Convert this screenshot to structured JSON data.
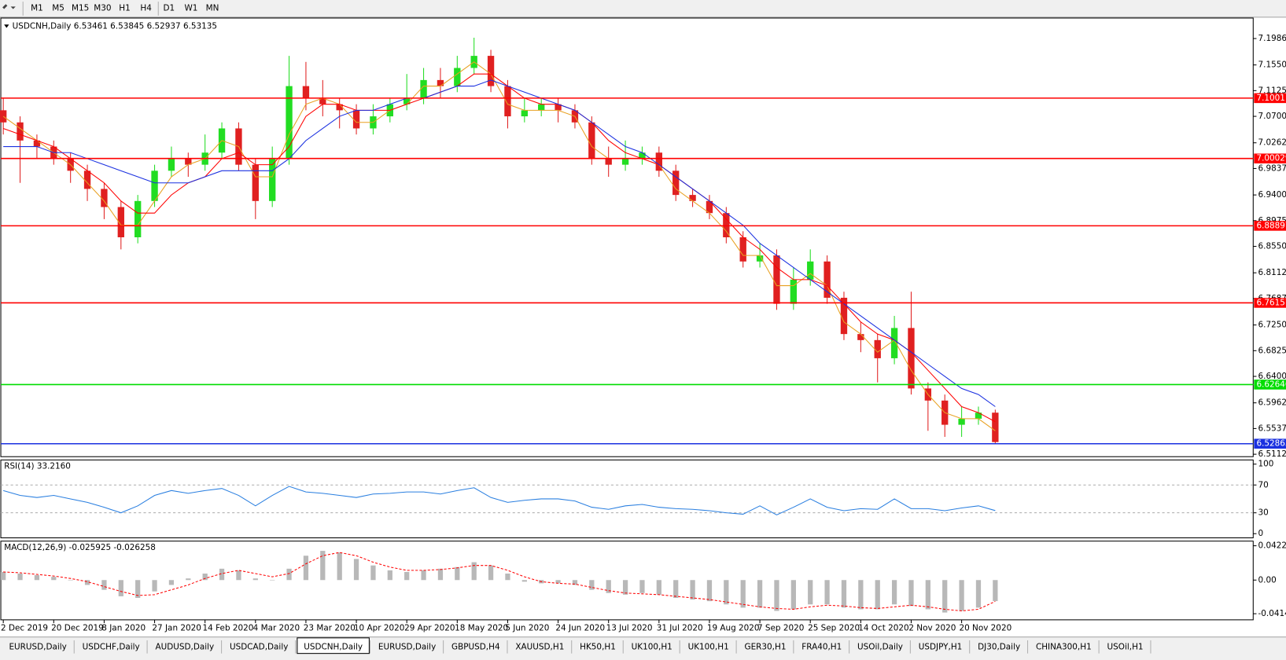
{
  "toolbar": {
    "timeframes": [
      "M1",
      "M5",
      "M15",
      "M30",
      "H1",
      "H4",
      "D1",
      "W1",
      "MN"
    ]
  },
  "tabs": {
    "items": [
      "EURUSD,Daily",
      "USDCHF,Daily",
      "AUDUSD,Daily",
      "USDCAD,Daily",
      "USDCNH,Daily",
      "EURUSD,Daily",
      "GBPUSD,H4",
      "XAUUSD,H1",
      "HK50,H1",
      "UK100,H1",
      "UK100,H1",
      "GER30,H1",
      "FRA40,H1",
      "USOil,Daily",
      "USDJPY,H1",
      "DJ30,Daily",
      "CHINA300,H1",
      "USOil,H1"
    ],
    "active": 4
  },
  "chart_data": [
    {
      "type": "candlestick",
      "title": "USDCNH,Daily  6.53461 6.53845 6.52937 6.53135",
      "categories": [
        "2 Dec 2019",
        null,
        null,
        "20 Dec 2019",
        null,
        null,
        "8 Jan 2020",
        null,
        null,
        "27 Jan 2020",
        null,
        null,
        "14 Feb 2020",
        null,
        null,
        "4 Mar 2020",
        null,
        null,
        "23 Mar 2020",
        null,
        null,
        "10 Apr 2020",
        null,
        null,
        "29 Apr 2020",
        null,
        null,
        "18 May 2020",
        null,
        null,
        "5 Jun 2020",
        null,
        null,
        "24 Jun 2020",
        null,
        null,
        "13 Jul 2020",
        null,
        null,
        "31 Jul 2020",
        null,
        null,
        "19 Aug 2020",
        null,
        null,
        "7 Sep 2020",
        null,
        null,
        "25 Sep 2020",
        null,
        null,
        "14 Oct 2020",
        null,
        null,
        "2 Nov 2020",
        null,
        null,
        "20 Nov 2020",
        null,
        null
      ],
      "open": [
        7.08,
        7.06,
        7.03,
        7.02,
        7.0,
        6.98,
        6.95,
        6.92,
        6.87,
        6.93,
        6.98,
        7.0,
        6.99,
        7.01,
        7.05,
        6.99,
        6.93,
        7.0,
        7.12,
        7.1,
        7.09,
        7.08,
        7.05,
        7.07,
        7.09,
        7.1,
        7.13,
        7.12,
        7.15,
        7.17,
        7.12,
        7.07,
        7.08,
        7.09,
        7.08,
        7.06,
        7.0,
        6.99,
        7.0,
        7.01,
        6.98,
        6.94,
        6.93,
        6.91,
        6.87,
        6.83,
        6.84,
        6.76,
        6.8,
        6.83,
        6.77,
        6.71,
        6.7,
        6.67,
        6.72,
        6.62,
        6.6,
        6.56,
        6.57,
        6.58
      ],
      "high": [
        7.1,
        7.07,
        7.04,
        7.03,
        7.01,
        6.99,
        6.96,
        6.93,
        6.94,
        6.99,
        7.02,
        7.01,
        7.04,
        7.06,
        7.06,
        7.0,
        7.02,
        7.17,
        7.16,
        7.13,
        7.1,
        7.09,
        7.09,
        7.1,
        7.14,
        7.15,
        7.15,
        7.17,
        7.2,
        7.18,
        7.13,
        7.1,
        7.1,
        7.1,
        7.09,
        7.07,
        7.02,
        7.03,
        7.02,
        7.02,
        6.99,
        6.95,
        6.94,
        6.92,
        6.88,
        6.86,
        6.85,
        6.82,
        6.85,
        6.84,
        6.78,
        6.73,
        6.71,
        6.74,
        6.78,
        6.63,
        6.61,
        6.59,
        6.59,
        6.585
      ],
      "low": [
        7.04,
        6.96,
        7.0,
        6.99,
        6.96,
        6.93,
        6.9,
        6.85,
        6.86,
        6.92,
        6.97,
        6.97,
        6.98,
        7.0,
        6.98,
        6.9,
        6.92,
        6.99,
        7.08,
        7.07,
        7.05,
        7.04,
        7.04,
        7.06,
        7.08,
        7.09,
        7.1,
        7.11,
        7.14,
        7.11,
        7.05,
        7.06,
        7.07,
        7.06,
        7.05,
        6.99,
        6.97,
        6.98,
        6.99,
        6.97,
        6.93,
        6.92,
        6.9,
        6.86,
        6.82,
        6.82,
        6.75,
        6.75,
        6.79,
        6.76,
        6.7,
        6.68,
        6.63,
        6.66,
        6.61,
        6.55,
        6.54,
        6.54,
        6.56,
        6.529
      ],
      "close": [
        7.06,
        7.03,
        7.02,
        7.0,
        6.98,
        6.95,
        6.92,
        6.87,
        6.93,
        6.98,
        7.0,
        6.99,
        7.01,
        7.05,
        6.99,
        6.93,
        7.0,
        7.12,
        7.1,
        7.09,
        7.08,
        7.05,
        7.07,
        7.09,
        7.1,
        7.13,
        7.12,
        7.15,
        7.17,
        7.12,
        7.07,
        7.08,
        7.09,
        7.08,
        7.06,
        7.0,
        6.99,
        7.0,
        7.01,
        6.98,
        6.94,
        6.93,
        6.91,
        6.87,
        6.83,
        6.84,
        6.76,
        6.8,
        6.83,
        6.77,
        6.71,
        6.7,
        6.67,
        6.72,
        6.62,
        6.6,
        6.56,
        6.57,
        6.58,
        6.53135
      ],
      "up_color": "#22dd22",
      "down_color": "#e02020",
      "series": [
        {
          "color": "#e8a020",
          "values": [
            7.07,
            7.05,
            7.03,
            7.01,
            6.99,
            6.96,
            6.93,
            6.89,
            6.89,
            6.93,
            6.97,
            6.99,
            7.0,
            7.03,
            7.02,
            6.97,
            6.97,
            7.04,
            7.09,
            7.1,
            7.09,
            7.06,
            7.06,
            7.08,
            7.09,
            7.12,
            7.12,
            7.14,
            7.16,
            7.14,
            7.09,
            7.08,
            7.08,
            7.08,
            7.07,
            7.02,
            7.0,
            7.0,
            7.0,
            6.99,
            6.95,
            6.93,
            6.91,
            6.88,
            6.84,
            6.84,
            6.79,
            6.79,
            6.81,
            6.79,
            6.73,
            6.71,
            6.68,
            6.7,
            6.65,
            6.61,
            6.58,
            6.57,
            6.57,
            6.55
          ]
        },
        {
          "color": "#ff0000",
          "values": [
            7.05,
            7.04,
            7.03,
            7.02,
            7.0,
            6.98,
            6.96,
            6.93,
            6.91,
            6.91,
            6.94,
            6.96,
            6.97,
            7.0,
            7.01,
            6.99,
            6.99,
            7.02,
            7.07,
            7.09,
            7.09,
            7.08,
            7.08,
            7.08,
            7.09,
            7.1,
            7.11,
            7.12,
            7.14,
            7.14,
            7.12,
            7.1,
            7.09,
            7.09,
            7.08,
            7.06,
            7.03,
            7.01,
            7.0,
            6.99,
            6.97,
            6.95,
            6.93,
            6.9,
            6.87,
            6.85,
            6.82,
            6.8,
            6.8,
            6.79,
            6.76,
            6.73,
            6.71,
            6.7,
            6.68,
            6.65,
            6.62,
            6.59,
            6.58,
            6.565
          ]
        },
        {
          "color": "#1a30e0",
          "values": [
            7.02,
            7.02,
            7.02,
            7.01,
            7.01,
            7.0,
            6.99,
            6.98,
            6.97,
            6.96,
            6.96,
            6.96,
            6.97,
            6.98,
            6.98,
            6.98,
            6.98,
            7.0,
            7.03,
            7.05,
            7.07,
            7.08,
            7.08,
            7.09,
            7.1,
            7.1,
            7.11,
            7.12,
            7.12,
            7.13,
            7.12,
            7.11,
            7.1,
            7.09,
            7.08,
            7.06,
            7.04,
            7.02,
            7.01,
            6.99,
            6.97,
            6.95,
            6.93,
            6.91,
            6.89,
            6.86,
            6.84,
            6.82,
            6.8,
            6.78,
            6.76,
            6.74,
            6.72,
            6.7,
            6.68,
            6.66,
            6.64,
            6.62,
            6.61,
            6.59
          ]
        }
      ],
      "levels": [
        {
          "value": 7.10011,
          "color": "#ff0000"
        },
        {
          "value": 7.00029,
          "color": "#ff0000"
        },
        {
          "value": 6.88897,
          "color": "#ff0000"
        },
        {
          "value": 6.76157,
          "color": "#ff0000"
        },
        {
          "value": 6.62646,
          "color": "#00dd00"
        },
        {
          "value": 6.52865,
          "color": "#1a30e0"
        }
      ],
      "ylim": [
        6.50722,
        7.23254
      ],
      "yticks": [
        7.19865,
        {
          "value": 7.155,
          "label": "7.15500"
        },
        {
          "value": 7.1125,
          "label": "7.11250"
        },
        {
          "value": 7.07,
          "label": "7.07000"
        },
        7.02625,
        6.98375,
        {
          "value": 6.94,
          "label": "6.94000"
        },
        {
          "value": 6.8975,
          "label": "6.89750"
        },
        {
          "value": 6.855,
          "label": "6.85500"
        },
        6.81125,
        6.76875,
        {
          "value": 6.725,
          "label": "6.72500"
        },
        {
          "value": 6.6825,
          "label": "6.68250"
        },
        {
          "value": 6.64,
          "label": "6.64000"
        },
        6.59625,
        6.55375,
        6.51125
      ]
    },
    {
      "type": "line",
      "title": "RSI(14) 33.2160",
      "color": "#2a7fe0",
      "values": [
        62,
        55,
        52,
        55,
        50,
        45,
        38,
        30,
        40,
        55,
        62,
        58,
        62,
        65,
        55,
        40,
        55,
        68,
        60,
        58,
        55,
        52,
        57,
        58,
        60,
        60,
        57,
        62,
        66,
        52,
        45,
        48,
        50,
        50,
        47,
        38,
        35,
        40,
        42,
        38,
        36,
        35,
        33,
        30,
        28,
        40,
        27,
        38,
        50,
        38,
        33,
        36,
        35,
        50,
        36,
        36,
        33,
        37,
        40,
        33.216
      ],
      "ylim": [
        -6,
        106
      ],
      "yticks": [
        0,
        30,
        70,
        100
      ],
      "levels": [
        30,
        70
      ]
    },
    {
      "type": "macd",
      "title": "MACD(12,26,9) -0.025925 -0.026258",
      "color": "#b8b8b8",
      "signal_color": "#ff0000",
      "values": [
        0.01,
        0.008,
        0.006,
        0.004,
        0.0,
        -0.006,
        -0.012,
        -0.02,
        -0.022,
        -0.014,
        -0.006,
        0.002,
        0.008,
        0.014,
        0.012,
        0.002,
        0.0,
        0.014,
        0.03,
        0.036,
        0.034,
        0.026,
        0.018,
        0.012,
        0.01,
        0.012,
        0.014,
        0.016,
        0.022,
        0.018,
        0.008,
        -0.002,
        -0.004,
        -0.004,
        -0.006,
        -0.012,
        -0.016,
        -0.018,
        -0.016,
        -0.018,
        -0.022,
        -0.024,
        -0.026,
        -0.03,
        -0.034,
        -0.034,
        -0.038,
        -0.036,
        -0.03,
        -0.03,
        -0.034,
        -0.036,
        -0.036,
        -0.03,
        -0.032,
        -0.036,
        -0.04,
        -0.038,
        -0.034,
        -0.025925
      ],
      "signal": [
        0.01,
        0.009,
        0.007,
        0.005,
        0.002,
        -0.002,
        -0.008,
        -0.014,
        -0.019,
        -0.018,
        -0.012,
        -0.006,
        0.002,
        0.008,
        0.012,
        0.008,
        0.004,
        0.008,
        0.02,
        0.03,
        0.034,
        0.03,
        0.022,
        0.016,
        0.012,
        0.012,
        0.013,
        0.015,
        0.018,
        0.018,
        0.012,
        0.004,
        -0.002,
        -0.004,
        -0.005,
        -0.009,
        -0.013,
        -0.016,
        -0.017,
        -0.018,
        -0.02,
        -0.022,
        -0.024,
        -0.027,
        -0.03,
        -0.033,
        -0.035,
        -0.036,
        -0.033,
        -0.031,
        -0.032,
        -0.034,
        -0.035,
        -0.033,
        -0.031,
        -0.033,
        -0.036,
        -0.038,
        -0.036,
        -0.026258
      ],
      "ylim": [
        -0.049,
        0.048
      ],
      "yticks": [
        -0.04148,
        {
          "value": 0,
          "label": "0.00"
        },
        0.042275
      ]
    }
  ]
}
